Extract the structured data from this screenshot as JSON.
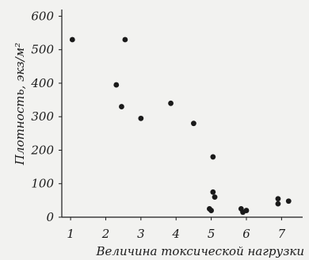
{
  "chart_data": {
    "type": "scatter",
    "title": "",
    "xlabel": "Величина токсической нагрузки",
    "ylabel": "Плотность, экз/м²",
    "xlim": [
      0.75,
      7.6
    ],
    "ylim": [
      0,
      620
    ],
    "xticks": [
      "1",
      "2",
      "3",
      "4",
      "5",
      "6",
      "7"
    ],
    "yticks": [
      "0",
      "100",
      "200",
      "300",
      "400",
      "500",
      "600"
    ],
    "grid": false,
    "legend": "none",
    "marker_color": "#1a1a1a",
    "series": [
      {
        "points": [
          {
            "x": 1.05,
            "y": 530
          },
          {
            "x": 2.55,
            "y": 530
          },
          {
            "x": 2.3,
            "y": 395
          },
          {
            "x": 2.45,
            "y": 330
          },
          {
            "x": 3.0,
            "y": 295
          },
          {
            "x": 3.85,
            "y": 340
          },
          {
            "x": 4.5,
            "y": 280
          },
          {
            "x": 5.05,
            "y": 180
          },
          {
            "x": 5.05,
            "y": 75
          },
          {
            "x": 5.1,
            "y": 60
          },
          {
            "x": 4.95,
            "y": 25
          },
          {
            "x": 5.0,
            "y": 20
          },
          {
            "x": 5.85,
            "y": 25
          },
          {
            "x": 5.9,
            "y": 15
          },
          {
            "x": 6.0,
            "y": 20
          },
          {
            "x": 6.9,
            "y": 55
          },
          {
            "x": 6.9,
            "y": 40
          },
          {
            "x": 7.2,
            "y": 48
          }
        ]
      }
    ]
  }
}
